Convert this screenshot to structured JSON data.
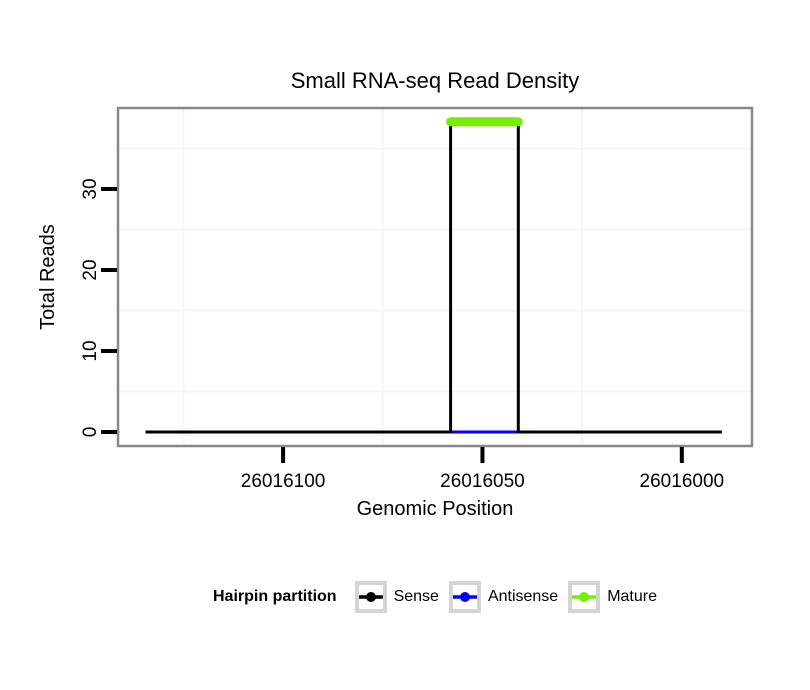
{
  "chart_data": {
    "type": "line",
    "title": "Small RNA-seq Read Density",
    "xlabel": "Genomic Position",
    "ylabel": "Total Reads",
    "x_reversed": true,
    "xlim": [
      26016141.4,
      26015982.4
    ],
    "ylim": [
      -1.73,
      40.0
    ],
    "x_ticks": {
      "values": [
        26016100,
        26016050,
        26016000
      ],
      "labels": [
        "26016100",
        "26016050",
        "26016000"
      ]
    },
    "y_ticks": {
      "values": [
        0,
        10,
        20,
        30
      ],
      "labels": [
        "0",
        "10",
        "20",
        "30"
      ]
    },
    "x_minor_ticks": [
      26016125,
      26016075,
      26016025
    ],
    "y_minor_ticks": [
      5,
      15,
      25,
      35
    ],
    "grid": "minor-only",
    "panel": {
      "background": "#ffffff",
      "border_color": "#888888",
      "grid_color": "#f5f5f5",
      "tick_color": "#000000"
    },
    "legend": {
      "title": "Hairpin partition",
      "position": "bottom",
      "key_border_color": "#d4d4d4"
    },
    "series": [
      {
        "name": "Sense",
        "color": "#000000",
        "width": 3,
        "z": 1,
        "points": [
          [
            26016134.5,
            0
          ],
          [
            26016058,
            0
          ],
          [
            26016058,
            38
          ],
          [
            26016041,
            38
          ],
          [
            26016041,
            0
          ],
          [
            26015990,
            0
          ]
        ]
      },
      {
        "name": "Antisense",
        "color": "#0000ff",
        "width": 3,
        "z": 0,
        "points": [
          [
            26016134.5,
            0
          ],
          [
            26015990,
            0
          ]
        ]
      },
      {
        "name": "Mature",
        "color": "#76ee00",
        "width": 9,
        "z": 2,
        "linecap": "round",
        "points": [
          [
            26016058,
            38.3
          ],
          [
            26016041,
            38.3
          ]
        ]
      }
    ]
  }
}
